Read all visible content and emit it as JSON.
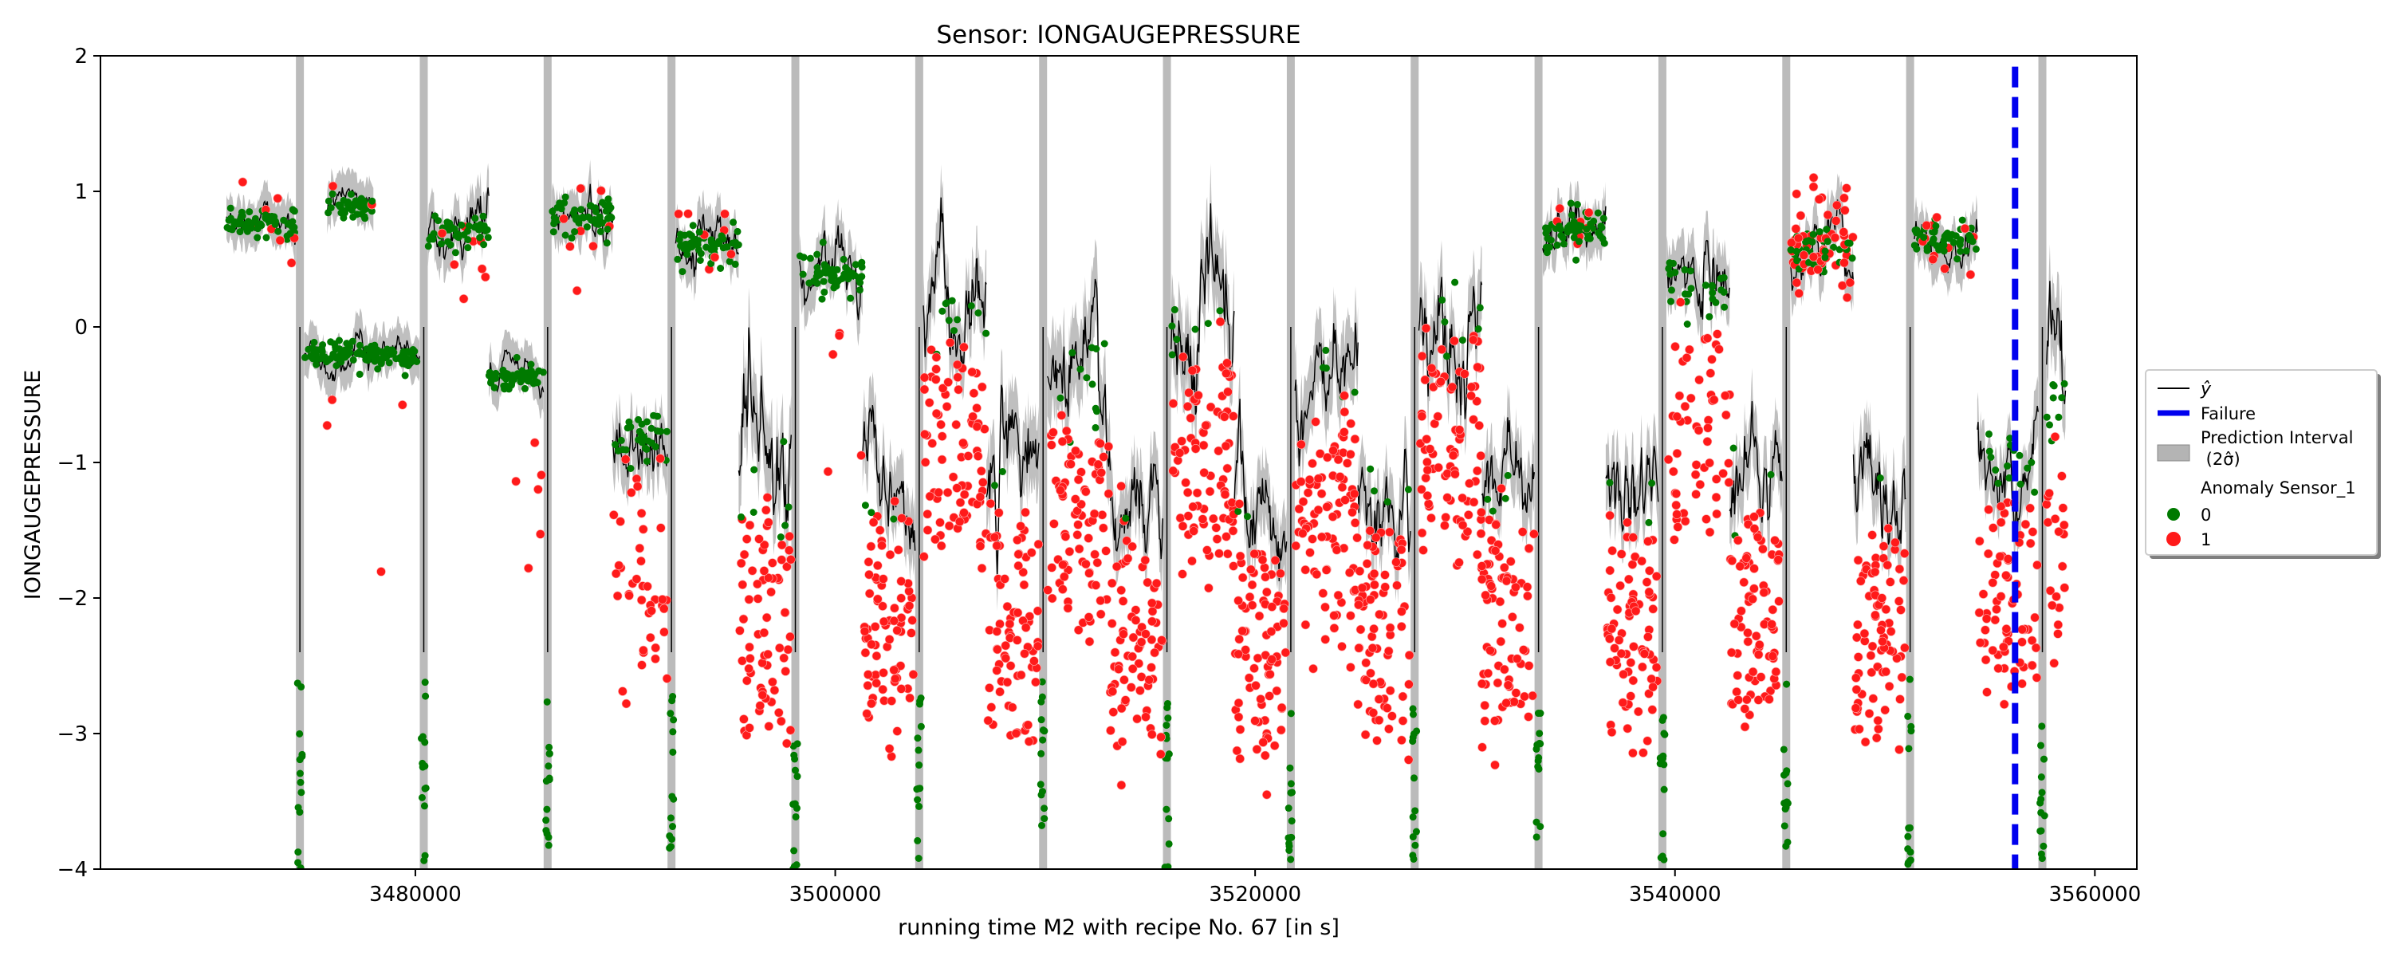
{
  "chart_data": {
    "type": "scatter",
    "title": "Sensor: IONGAUGEPRESSURE",
    "xlabel": "running time M2 with recipe No. 67 [in s]",
    "ylabel": "IONGAUGEPRESSURE",
    "xlim": [
      3465000,
      3562000
    ],
    "ylim": [
      -4,
      2
    ],
    "xticks": [
      3480000,
      3500000,
      3520000,
      3540000,
      3560000
    ],
    "yticks": [
      -4,
      -3,
      -2,
      -1,
      0,
      1,
      2
    ],
    "xtick_labels": [
      "3480000",
      "3500000",
      "3520000",
      "3540000",
      "3560000"
    ],
    "ytick_labels": [
      "−4",
      "−3",
      "−2",
      "−1",
      "0",
      "1",
      "2"
    ],
    "grid": false,
    "legend_position": "right",
    "legend": {
      "yhat_label": "ŷ",
      "failure_label": "Failure",
      "interval_label_line1": "Prediction Interval",
      "interval_label_line2": " (2σ̂)",
      "anomaly_title": "Anomaly Sensor_1",
      "class0_label": "0",
      "class1_label": "1"
    },
    "colors": {
      "yhat": "#000000",
      "failure": "#0000ee",
      "interval": "#b4b4b4",
      "class0": "#007a00",
      "class1": "#ff1a1a"
    },
    "failure_x": 3556200,
    "drop_x": [
      3474500,
      3480400,
      3486300,
      3492200,
      3498100,
      3504000,
      3509900,
      3515800,
      3521700,
      3527600,
      3533500,
      3539400,
      3545300,
      3551200,
      3557500
    ],
    "segments": [
      {
        "x": [
          3471000,
          3474300
        ],
        "mean": 0.77,
        "noise": 0.08,
        "anom": 0.05
      },
      {
        "x": [
          3474700,
          3478200
        ],
        "mean": -0.2,
        "noise": 0.08,
        "anom": 0.05
      },
      {
        "x": [
          3475800,
          3478000
        ],
        "mean": 0.88,
        "noise": 0.08,
        "anom": 0.05
      },
      {
        "x": [
          3478200,
          3480200
        ],
        "mean": -0.22,
        "noise": 0.06,
        "anom": 0.03
      },
      {
        "x": [
          3480600,
          3483500
        ],
        "mean": 0.7,
        "noise": 0.12,
        "anom": 0.06
      },
      {
        "x": [
          3483500,
          3486100
        ],
        "mean": -0.37,
        "noise": 0.07,
        "anom": 0.03
      },
      {
        "x": [
          3486500,
          3489400
        ],
        "mean": 0.82,
        "noise": 0.12,
        "anom": 0.08
      },
      {
        "x": [
          3489400,
          3492000
        ],
        "mean": -0.8,
        "noise": 0.2,
        "anom": 0.55
      },
      {
        "x": [
          3492400,
          3495400
        ],
        "mean": 0.6,
        "noise": 0.12,
        "anom": 0.08
      },
      {
        "x": [
          3495400,
          3497900
        ],
        "mean": -1.2,
        "noise": 0.35,
        "anom": 0.9
      },
      {
        "x": [
          3498300,
          3501300
        ],
        "mean": 0.4,
        "noise": 0.15,
        "anom": 0.1
      },
      {
        "x": [
          3501300,
          3503800
        ],
        "mean": -1.15,
        "noise": 0.25,
        "anom": 0.95
      },
      {
        "x": [
          3504200,
          3507200
        ],
        "mean": 0.1,
        "noise": 0.25,
        "anom": 0.85
      },
      {
        "x": [
          3507200,
          3509700
        ],
        "mean": -1.1,
        "noise": 0.3,
        "anom": 0.9
      },
      {
        "x": [
          3510100,
          3513100
        ],
        "mean": -0.4,
        "noise": 0.35,
        "anom": 0.85
      },
      {
        "x": [
          3513100,
          3515600
        ],
        "mean": -1.3,
        "noise": 0.25,
        "anom": 0.95
      },
      {
        "x": [
          3516000,
          3519000
        ],
        "mean": 0.0,
        "noise": 0.35,
        "anom": 0.9
      },
      {
        "x": [
          3519000,
          3521500
        ],
        "mean": -1.3,
        "noise": 0.25,
        "anom": 0.95
      },
      {
        "x": [
          3521900,
          3524900
        ],
        "mean": -0.4,
        "noise": 0.3,
        "anom": 0.9
      },
      {
        "x": [
          3524900,
          3527400
        ],
        "mean": -1.3,
        "noise": 0.25,
        "anom": 0.95
      },
      {
        "x": [
          3527800,
          3530800
        ],
        "mean": 0.1,
        "noise": 0.3,
        "anom": 0.9
      },
      {
        "x": [
          3530800,
          3533300
        ],
        "mean": -1.2,
        "noise": 0.25,
        "anom": 0.95
      },
      {
        "x": [
          3533700,
          3536700
        ],
        "mean": 0.72,
        "noise": 0.12,
        "anom": 0.08
      },
      {
        "x": [
          3536700,
          3539200
        ],
        "mean": -1.2,
        "noise": 0.25,
        "anom": 0.95
      },
      {
        "x": [
          3539600,
          3542600
        ],
        "mean": 0.3,
        "noise": 0.2,
        "anom": 0.6
      },
      {
        "x": [
          3542600,
          3545100
        ],
        "mean": -1.2,
        "noise": 0.25,
        "anom": 0.95
      },
      {
        "x": [
          3545500,
          3548500
        ],
        "mean": 0.55,
        "noise": 0.15,
        "anom": 0.5
      },
      {
        "x": [
          3548500,
          3551000
        ],
        "mean": -1.2,
        "noise": 0.25,
        "anom": 0.95
      },
      {
        "x": [
          3551400,
          3554400
        ],
        "mean": 0.65,
        "noise": 0.12,
        "anom": 0.1
      },
      {
        "x": [
          3554400,
          3557300
        ],
        "mean": -0.95,
        "noise": 0.2,
        "anom": 0.7
      },
      {
        "x": [
          3557700,
          3558600
        ],
        "mean": -0.6,
        "noise": 0.3,
        "anom": 0.5
      }
    ]
  }
}
